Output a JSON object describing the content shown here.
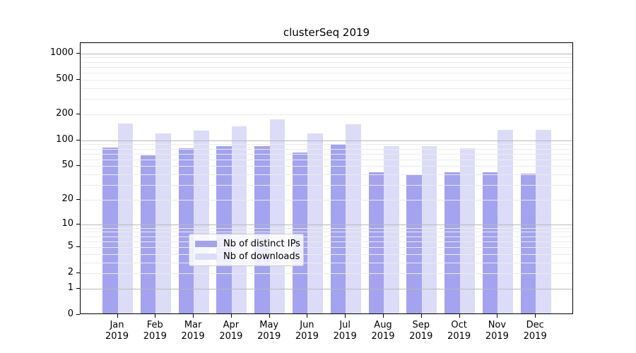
{
  "title": "clusterSeq 2019",
  "legend": {
    "items": [
      {
        "label": "Nb of distinct IPs",
        "color": "#a3a3f0"
      },
      {
        "label": "Nb of downloads",
        "color": "#dcdcf8"
      }
    ]
  },
  "chart_data": {
    "type": "bar",
    "title": "clusterSeq 2019",
    "categories": [
      "Jan",
      "Feb",
      "Mar",
      "Apr",
      "May",
      "Jun",
      "Jul",
      "Aug",
      "Sep",
      "Oct",
      "Nov",
      "Dec"
    ],
    "category_year": "2019",
    "series": [
      {
        "name": "Nb of distinct IPs",
        "color": "#a3a3f0",
        "values": [
          79,
          64,
          78,
          83,
          83,
          69,
          86,
          41,
          38,
          41,
          41,
          39
        ]
      },
      {
        "name": "Nb of downloads",
        "color": "#dcdcf8",
        "values": [
          150,
          115,
          125,
          139,
          169,
          116,
          147,
          82,
          83,
          78,
          127,
          126
        ]
      }
    ],
    "y_scale": "log10(1+x)",
    "y_ticks": [
      0,
      1,
      2,
      5,
      10,
      20,
      50,
      100,
      200,
      500,
      1000
    ],
    "ylim": [
      0,
      1318
    ],
    "grid": "major and minor horizontal",
    "legend_position": "lower center"
  }
}
